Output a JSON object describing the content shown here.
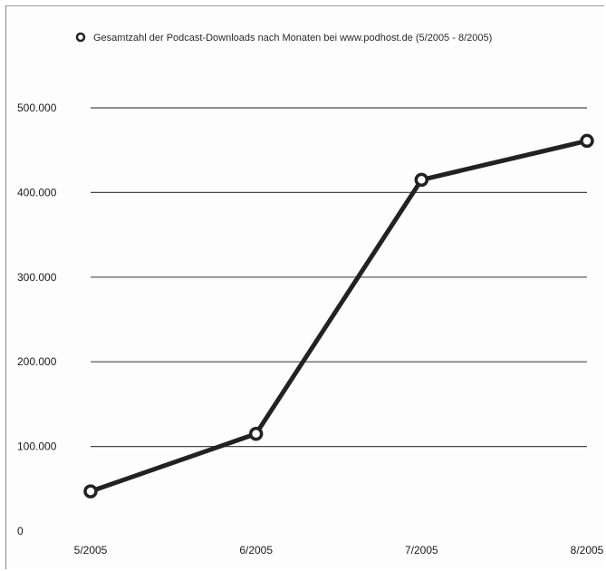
{
  "chart_data": {
    "type": "line",
    "title": "",
    "xlabel": "",
    "ylabel": "",
    "categories": [
      "5/2005",
      "6/2005",
      "7/2005",
      "8/2005"
    ],
    "series": [
      {
        "name": "Gesamtzahl der Podcast-Downloads nach Monaten bei www.podhost.de (5/2005 - 8/2005)",
        "values": [
          47000,
          115000,
          415000,
          461000
        ]
      }
    ],
    "ylim": [
      0,
      500000
    ],
    "yticks": [
      0,
      100000,
      200000,
      300000,
      400000,
      500000
    ],
    "ytick_labels": [
      "0",
      "100.000",
      "200.000",
      "300.000",
      "400.000",
      "500.000"
    ],
    "grid": true,
    "legend_position": "top",
    "colors": {
      "line": "#222222",
      "grid": "#4a4a4a",
      "marker_fill": "#ffffff"
    }
  }
}
